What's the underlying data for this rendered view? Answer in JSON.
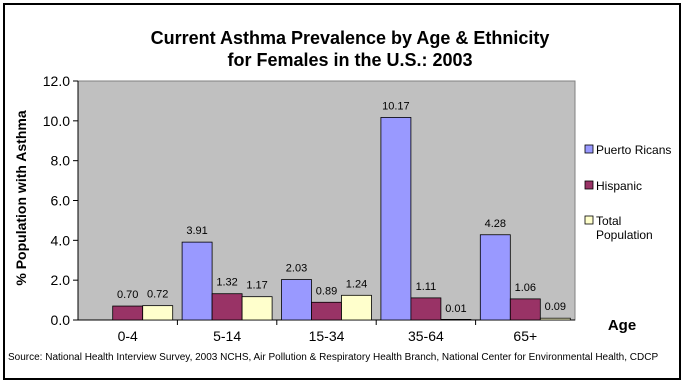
{
  "chart_data": {
    "type": "bar",
    "title_line1": "Current Asthma Prevalence by Age & Ethnicity",
    "title_line2": "for Females in the U.S.: 2003",
    "ylabel": "% Population  with Asthma",
    "xlabel": "Age",
    "ylim": [
      0,
      12
    ],
    "yticks": [
      "0.0",
      "2.0",
      "4.0",
      "6.0",
      "8.0",
      "10.0",
      "12.0"
    ],
    "categories": [
      "0-4",
      "5-14",
      "15-34",
      "35-64",
      "65+"
    ],
    "series": [
      {
        "name": "Puerto Ricans",
        "color": "#9999ff",
        "values": [
          null,
          3.91,
          2.03,
          10.17,
          4.28
        ],
        "labels": [
          "",
          "3.91",
          "2.03",
          "10.17",
          "4.28"
        ]
      },
      {
        "name": "Hispanic",
        "color": "#993366",
        "values": [
          0.7,
          1.32,
          0.89,
          1.11,
          1.06
        ],
        "labels": [
          "0.70",
          "1.32",
          "0.89",
          "1.11",
          "1.06"
        ]
      },
      {
        "name": "Total Population",
        "legend_lines": [
          "Total",
          "Population"
        ],
        "color": "#ffffcc",
        "values": [
          0.72,
          1.17,
          1.24,
          0.01,
          0.09
        ],
        "labels": [
          "0.72",
          "1.17",
          "1.24",
          "0.01",
          "0.09"
        ]
      }
    ],
    "plot_background": "#c0c0c0",
    "grid": false,
    "legend_position": "right",
    "source": "Source: National Health Interview Survey, 2003 NCHS,  Air Pollution & Respiratory Health Branch, National Center for Environmental Health, CDCP"
  }
}
